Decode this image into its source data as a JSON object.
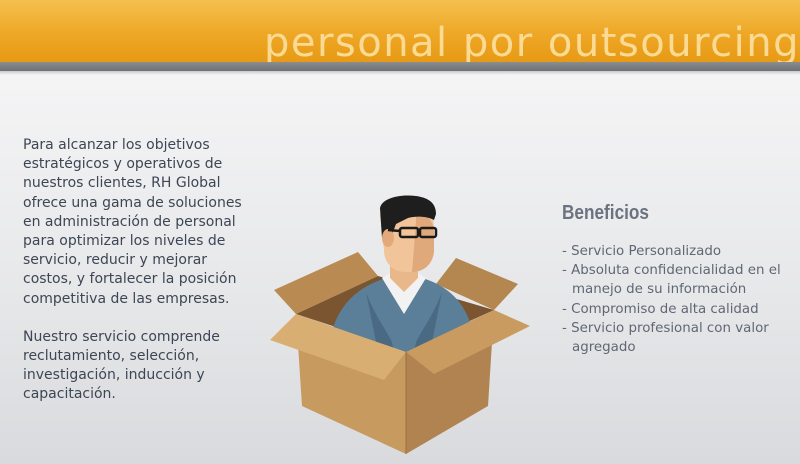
{
  "banner": {
    "title": "personal por outsourcing",
    "color_accent": "#eea726"
  },
  "intro": {
    "paragraph_1": "Para alcanzar los objetivos estratégicos y operativos de nuestros clientes, RH Global ofrece una gama de soluciones en administración de personal para optimizar los niveles de servicio, reducir y mejorar costos, y fortalecer la posición competitiva de las empresas.",
    "paragraph_2": "Nuestro servicio comprende reclutamiento, selección, investigación, inducción y capacitación."
  },
  "illustration": {
    "icon": "man-in-box-illustration"
  },
  "benefits": {
    "title": "Beneficios",
    "items": [
      "- Servicio Personalizado",
      "- Absoluta confidencialidad en el manejo de su información",
      "- Compromiso de alta calidad",
      "- Servicio profesional con valor agregado"
    ]
  }
}
